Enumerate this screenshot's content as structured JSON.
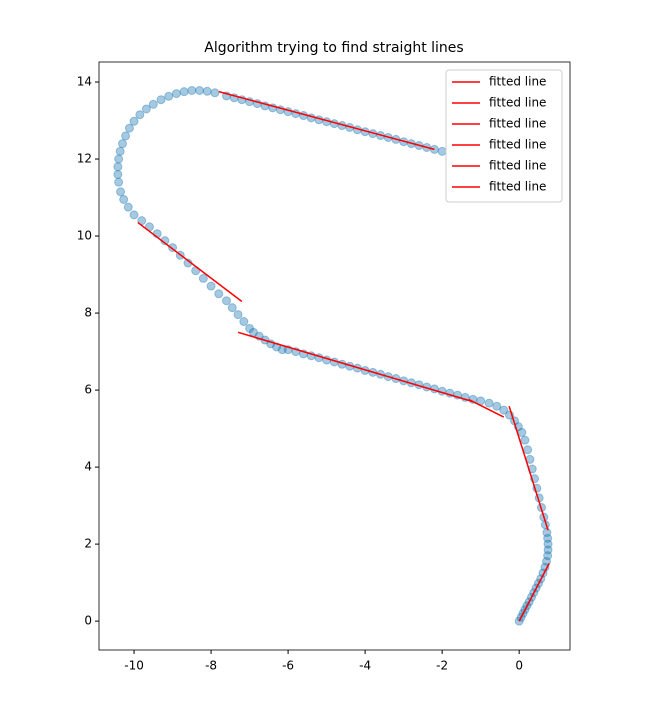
{
  "chart_data": {
    "type": "scatter",
    "title": "Algorithm trying to find straight lines",
    "xlim": [
      -10.91,
      1.32
    ],
    "ylim": [
      -0.75,
      14.52
    ],
    "xticks": [
      -10,
      -8,
      -6,
      -4,
      -2,
      0
    ],
    "yticks": [
      0,
      2,
      4,
      6,
      8,
      10,
      12,
      14
    ],
    "legend": "upper right",
    "points": {
      "color": "#1f77b4",
      "x": [
        0,
        0.05,
        0.1,
        0.15,
        0.2,
        0.26,
        0.32,
        0.38,
        0.44,
        0.5,
        0.56,
        0.62,
        0.67,
        0.71,
        0.74,
        0.75,
        0.75,
        0.74,
        0.72,
        0.68,
        0.64,
        0.58,
        0.52,
        0.46,
        0.4,
        0.34,
        0.28,
        0.22,
        0.15,
        0.07,
        -0.02,
        -0.12,
        -0.25,
        -0.4,
        -0.58,
        -0.78,
        -1.0,
        -1.2,
        -1.4,
        -1.6,
        -1.8,
        -2.0,
        -2.2,
        -2.4,
        -2.6,
        -2.8,
        -3.0,
        -3.2,
        -3.4,
        -3.6,
        -3.8,
        -4.0,
        -4.2,
        -4.4,
        -4.6,
        -4.8,
        -5.0,
        -5.2,
        -5.4,
        -5.6,
        -5.8,
        -6.0,
        -6.15,
        -6.3,
        -6.45,
        -6.6,
        -6.75,
        -6.9,
        -7.0,
        -7.15,
        -7.3,
        -7.45,
        -7.6,
        -7.8,
        -8.0,
        -8.2,
        -8.4,
        -8.6,
        -8.8,
        -9.0,
        -9.2,
        -9.4,
        -9.6,
        -9.8,
        -10.0,
        -10.15,
        -10.27,
        -10.35,
        -10.4,
        -10.42,
        -10.42,
        -10.4,
        -10.36,
        -10.3,
        -10.22,
        -10.12,
        -10.0,
        -9.85,
        -9.68,
        -9.5,
        -9.3,
        -9.1,
        -8.9,
        -8.7,
        -8.5,
        -8.3,
        -8.1,
        -7.9,
        -7.6,
        -7.4,
        -7.2,
        -7.0,
        -6.8,
        -6.6,
        -6.4,
        -6.2,
        -6.0,
        -5.8,
        -5.6,
        -5.4,
        -5.2,
        -5.0,
        -4.8,
        -4.6,
        -4.4,
        -4.2,
        -4.0,
        -3.8,
        -3.6,
        -3.4,
        -3.2,
        -3.0,
        -2.8,
        -2.6,
        -2.4,
        -2.2,
        -2.0
      ],
      "y": [
        0,
        0.1,
        0.2,
        0.3,
        0.4,
        0.5,
        0.62,
        0.74,
        0.86,
        0.98,
        1.1,
        1.25,
        1.4,
        1.55,
        1.7,
        1.85,
        2.0,
        2.15,
        2.3,
        2.5,
        2.7,
        2.95,
        3.2,
        3.45,
        3.7,
        3.95,
        4.2,
        4.45,
        4.7,
        4.9,
        5.05,
        5.2,
        5.35,
        5.48,
        5.58,
        5.66,
        5.72,
        5.76,
        5.81,
        5.87,
        5.92,
        5.97,
        6.03,
        6.08,
        6.14,
        6.19,
        6.24,
        6.3,
        6.35,
        6.41,
        6.46,
        6.51,
        6.57,
        6.62,
        6.67,
        6.73,
        6.78,
        6.84,
        6.89,
        6.94,
        7.0,
        7.05,
        7.05,
        7.12,
        7.2,
        7.3,
        7.4,
        7.5,
        7.6,
        7.78,
        7.96,
        8.14,
        8.32,
        8.5,
        8.7,
        8.9,
        9.1,
        9.3,
        9.5,
        9.7,
        9.88,
        10.06,
        10.24,
        10.4,
        10.55,
        10.75,
        10.95,
        11.15,
        11.4,
        11.6,
        11.8,
        12.0,
        12.2,
        12.4,
        12.6,
        12.8,
        12.98,
        13.15,
        13.3,
        13.42,
        13.54,
        13.63,
        13.7,
        13.75,
        13.78,
        13.78,
        13.76,
        13.72,
        13.64,
        13.59,
        13.54,
        13.49,
        13.44,
        13.38,
        13.33,
        13.28,
        13.23,
        13.18,
        13.13,
        13.07,
        13.02,
        12.97,
        12.92,
        12.87,
        12.82,
        12.76,
        12.71,
        12.66,
        12.61,
        12.56,
        12.51,
        12.45,
        12.4,
        12.35,
        12.3,
        12.25,
        12.2
      ]
    },
    "lines": [
      {
        "name": "fitted line",
        "color": "#ff0000",
        "x": [
          -7.8,
          -2.2
        ],
        "y": [
          13.75,
          12.25
        ]
      },
      {
        "name": "fitted line",
        "color": "#ff0000",
        "x": [
          -9.9,
          -7.2
        ],
        "y": [
          10.35,
          8.3
        ]
      },
      {
        "name": "fitted line",
        "color": "#ff0000",
        "x": [
          -7.3,
          -1.2
        ],
        "y": [
          7.5,
          5.7
        ]
      },
      {
        "name": "fitted line",
        "color": "#ff0000",
        "x": [
          -1.3,
          -0.4
        ],
        "y": [
          5.75,
          5.3
        ]
      },
      {
        "name": "fitted line",
        "color": "#ff0000",
        "x": [
          -0.26,
          0.75
        ],
        "y": [
          5.58,
          2.36
        ]
      },
      {
        "name": "fitted line",
        "color": "#ff0000",
        "x": [
          0,
          0.78
        ],
        "y": [
          0,
          1.5
        ]
      }
    ]
  }
}
